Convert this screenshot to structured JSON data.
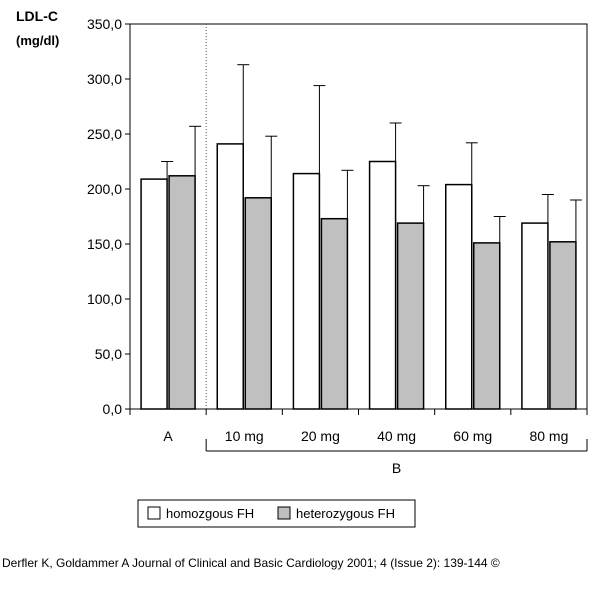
{
  "chart_data": {
    "type": "bar",
    "ylabel": "LDL-C",
    "ylabel_unit": "(mg/dl)",
    "ylim": [
      0,
      350
    ],
    "yticks": [
      "0,0",
      "50,0",
      "100,0",
      "150,0",
      "200,0",
      "250,0",
      "300,0",
      "350,0"
    ],
    "categories": [
      "A",
      "10 mg",
      "20 mg",
      "40 mg",
      "60 mg",
      "80 mg"
    ],
    "group_label": "B",
    "series": [
      {
        "name": "homozgous FH",
        "color": "#ffffff",
        "values": [
          209,
          241,
          214,
          225,
          204,
          169
        ],
        "errors": [
          16,
          72,
          80,
          35,
          38,
          26
        ]
      },
      {
        "name": "heterozygous FH",
        "color": "#c0c0c0",
        "values": [
          212,
          192,
          173,
          169,
          151,
          152
        ],
        "errors": [
          45,
          56,
          44,
          34,
          24,
          38
        ]
      }
    ],
    "legend_position": "bottom"
  },
  "caption": "Derfler K, Goldammer A Journal of Clinical and Basic Cardiology 2001; 4 (Issue 2): 139-144 ©"
}
